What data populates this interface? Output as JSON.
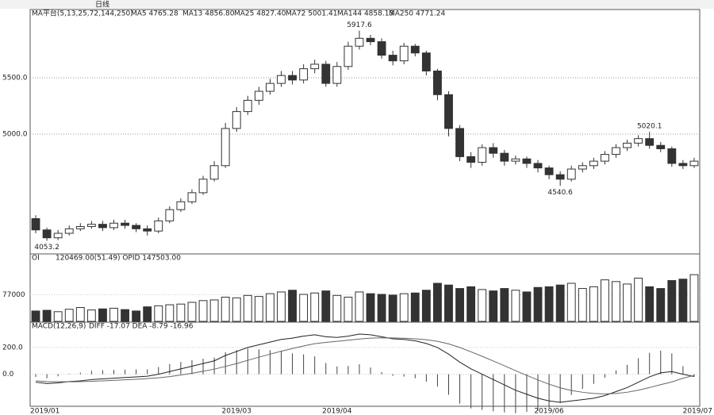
{
  "toolbar": {
    "period": "日线"
  },
  "chart_data": [
    {
      "type": "candlestick",
      "title": "MA平台(5,13,25,72,144,250)",
      "legend_texts": [
        "MA5 4765.28",
        "MA13 4856.80",
        "MA25 4827.40",
        "MA72 5001.41",
        "MA144 4858.13",
        "MA250 4771.24"
      ],
      "open": [
        4250,
        4150,
        4080,
        4120,
        4160,
        4180,
        4200,
        4170,
        4210,
        4190,
        4160,
        4140,
        4230,
        4330,
        4400,
        4480,
        4600,
        4720,
        5050,
        5200,
        5300,
        5380,
        5450,
        5520,
        5480,
        5580,
        5620,
        5450,
        5600,
        5780,
        5850,
        5820,
        5700,
        5650,
        5780,
        5720,
        5560,
        5350,
        5050,
        4800,
        4750,
        4880,
        4830,
        4760,
        4780,
        4740,
        4700,
        4640,
        4600,
        4690,
        4720,
        4760,
        4820,
        4880,
        4920,
        4960,
        4900,
        4870,
        4740,
        4720
      ],
      "high": [
        4280,
        4170,
        4150,
        4190,
        4210,
        4230,
        4230,
        4240,
        4240,
        4210,
        4190,
        4260,
        4360,
        4430,
        4510,
        4630,
        4760,
        5100,
        5240,
        5340,
        5420,
        5490,
        5560,
        5560,
        5620,
        5660,
        5650,
        5640,
        5820,
        5917.6,
        5880,
        5850,
        5740,
        5810,
        5800,
        5740,
        5580,
        5380,
        5080,
        4840,
        4910,
        4920,
        4860,
        4810,
        4800,
        4770,
        4720,
        4670,
        4720,
        4750,
        4790,
        4850,
        4910,
        4950,
        4990,
        5020.1,
        4930,
        4890,
        4770,
        4790
      ],
      "low": [
        4120,
        4053.2,
        4060,
        4100,
        4140,
        4160,
        4140,
        4150,
        4160,
        4130,
        4100,
        4120,
        4210,
        4310,
        4380,
        4460,
        4580,
        4700,
        5020,
        5170,
        5260,
        5350,
        5420,
        5440,
        5450,
        5540,
        5420,
        5420,
        5570,
        5750,
        5790,
        5670,
        5610,
        5620,
        5690,
        5520,
        5300,
        4980,
        4760,
        4700,
        4720,
        4790,
        4720,
        4730,
        4700,
        4660,
        4600,
        4540.6,
        4580,
        4660,
        4690,
        4730,
        4790,
        4850,
        4890,
        4870,
        4840,
        4710,
        4690,
        4700
      ],
      "close": [
        4150,
        4080,
        4120,
        4160,
        4180,
        4200,
        4170,
        4210,
        4190,
        4160,
        4140,
        4230,
        4330,
        4400,
        4480,
        4600,
        4720,
        5050,
        5200,
        5300,
        5380,
        5450,
        5520,
        5480,
        5580,
        5620,
        5450,
        5600,
        5780,
        5850,
        5820,
        5700,
        5650,
        5780,
        5720,
        5560,
        5350,
        5050,
        4800,
        4750,
        4880,
        4830,
        4760,
        4780,
        4740,
        4700,
        4640,
        4600,
        4690,
        4720,
        4760,
        4820,
        4880,
        4920,
        4960,
        4900,
        4870,
        4740,
        4720,
        4760
      ],
      "annotations": [
        {
          "value": 5917.6,
          "label": "5917.6"
        },
        {
          "value": 5020.1,
          "label": "5020.1"
        },
        {
          "value": 4540.6,
          "label": "4540.6"
        },
        {
          "value": 4053.2,
          "label": "4053.2"
        }
      ],
      "ylim": [
        3937,
        6035
      ],
      "yticks": [
        {
          "value": 5000,
          "label": "5000.0"
        },
        {
          "value": 5500,
          "label": "5500.0"
        }
      ],
      "grid": true,
      "up_color": "#ffffff",
      "down_color": "#333333"
    },
    {
      "type": "bar",
      "title": "OI",
      "subtitle": "120469.00(51.49)   OPID 147503.00",
      "values": [
        30000,
        32000,
        28000,
        35000,
        40000,
        33000,
        36000,
        38000,
        34000,
        30000,
        42000,
        45000,
        48000,
        50000,
        55000,
        60000,
        62000,
        70000,
        68000,
        75000,
        72000,
        80000,
        85000,
        90000,
        78000,
        82000,
        88000,
        75000,
        70000,
        85000,
        80000,
        78000,
        76000,
        80000,
        82000,
        90000,
        110000,
        105000,
        95000,
        100000,
        92000,
        88000,
        95000,
        90000,
        85000,
        98000,
        100000,
        105000,
        110000,
        95000,
        100000,
        120000,
        115000,
        108000,
        125000,
        100000,
        95000,
        118000,
        122000,
        135000
      ],
      "ylim": [
        0,
        172000
      ],
      "yticks": [
        77000
      ]
    },
    {
      "type": "macd",
      "title": "MACD(12,26,9)",
      "subtitle": "DIFF -17.07   DEA -8.79   -16.96",
      "categories": [
        "2019/01",
        null,
        null,
        null,
        null,
        null,
        null,
        null,
        null,
        null,
        null,
        null,
        null,
        null,
        null,
        null,
        null,
        null,
        "2019/03",
        null,
        null,
        null,
        null,
        null,
        null,
        null,
        null,
        "2019/04",
        null,
        null,
        null,
        null,
        null,
        null,
        null,
        null,
        null,
        null,
        null,
        null,
        null,
        null,
        null,
        null,
        null,
        null,
        "2019/06",
        null,
        null,
        null,
        null,
        null,
        null,
        null,
        null,
        null,
        null,
        null,
        null,
        "2019/07"
      ],
      "series": [
        {
          "name": "DIFF",
          "color": "#222222",
          "values": [
            -60,
            -70,
            -65,
            -55,
            -50,
            -40,
            -35,
            -30,
            -25,
            -20,
            -15,
            0,
            20,
            40,
            60,
            80,
            100,
            140,
            170,
            200,
            220,
            240,
            260,
            270,
            285,
            295,
            280,
            275,
            285,
            300,
            295,
            280,
            265,
            260,
            250,
            230,
            200,
            150,
            90,
            40,
            0,
            -40,
            -80,
            -120,
            -150,
            -180,
            -200,
            -210,
            -200,
            -190,
            -180,
            -160,
            -130,
            -100,
            -60,
            -20,
            10,
            20,
            0,
            -17.07
          ]
        },
        {
          "name": "DEA",
          "color": "#666666",
          "values": [
            -50,
            -55,
            -57,
            -57,
            -56,
            -53,
            -50,
            -46,
            -42,
            -38,
            -33,
            -27,
            -18,
            -6,
            7,
            22,
            38,
            58,
            80,
            104,
            127,
            150,
            172,
            192,
            211,
            228,
            238,
            246,
            254,
            263,
            270,
            272,
            271,
            269,
            265,
            258,
            246,
            227,
            200,
            168,
            134,
            99,
            63,
            26,
            -9,
            -43,
            -75,
            -102,
            -122,
            -135,
            -144,
            -147,
            -144,
            -135,
            -120,
            -100,
            -78,
            -58,
            -30,
            -8.79
          ]
        }
      ],
      "histogram": [
        -20,
        -30,
        -16,
        4,
        12,
        26,
        30,
        32,
        34,
        36,
        36,
        54,
        76,
        92,
        106,
        116,
        124,
        164,
        180,
        192,
        186,
        180,
        176,
        156,
        148,
        134,
        84,
        58,
        62,
        74,
        50,
        16,
        -12,
        -18,
        -30,
        -56,
        -92,
        -154,
        -220,
        -256,
        -268,
        -278,
        -286,
        -292,
        -282,
        -274,
        -250,
        -216,
        -156,
        -110,
        -72,
        -26,
        28,
        70,
        120,
        160,
        176,
        156,
        60,
        -16.96
      ],
      "ylim": [
        -240,
        330
      ],
      "yticks": [
        {
          "value": 0,
          "label": "0.0"
        },
        {
          "value": 200,
          "label": "200.0"
        }
      ]
    }
  ]
}
